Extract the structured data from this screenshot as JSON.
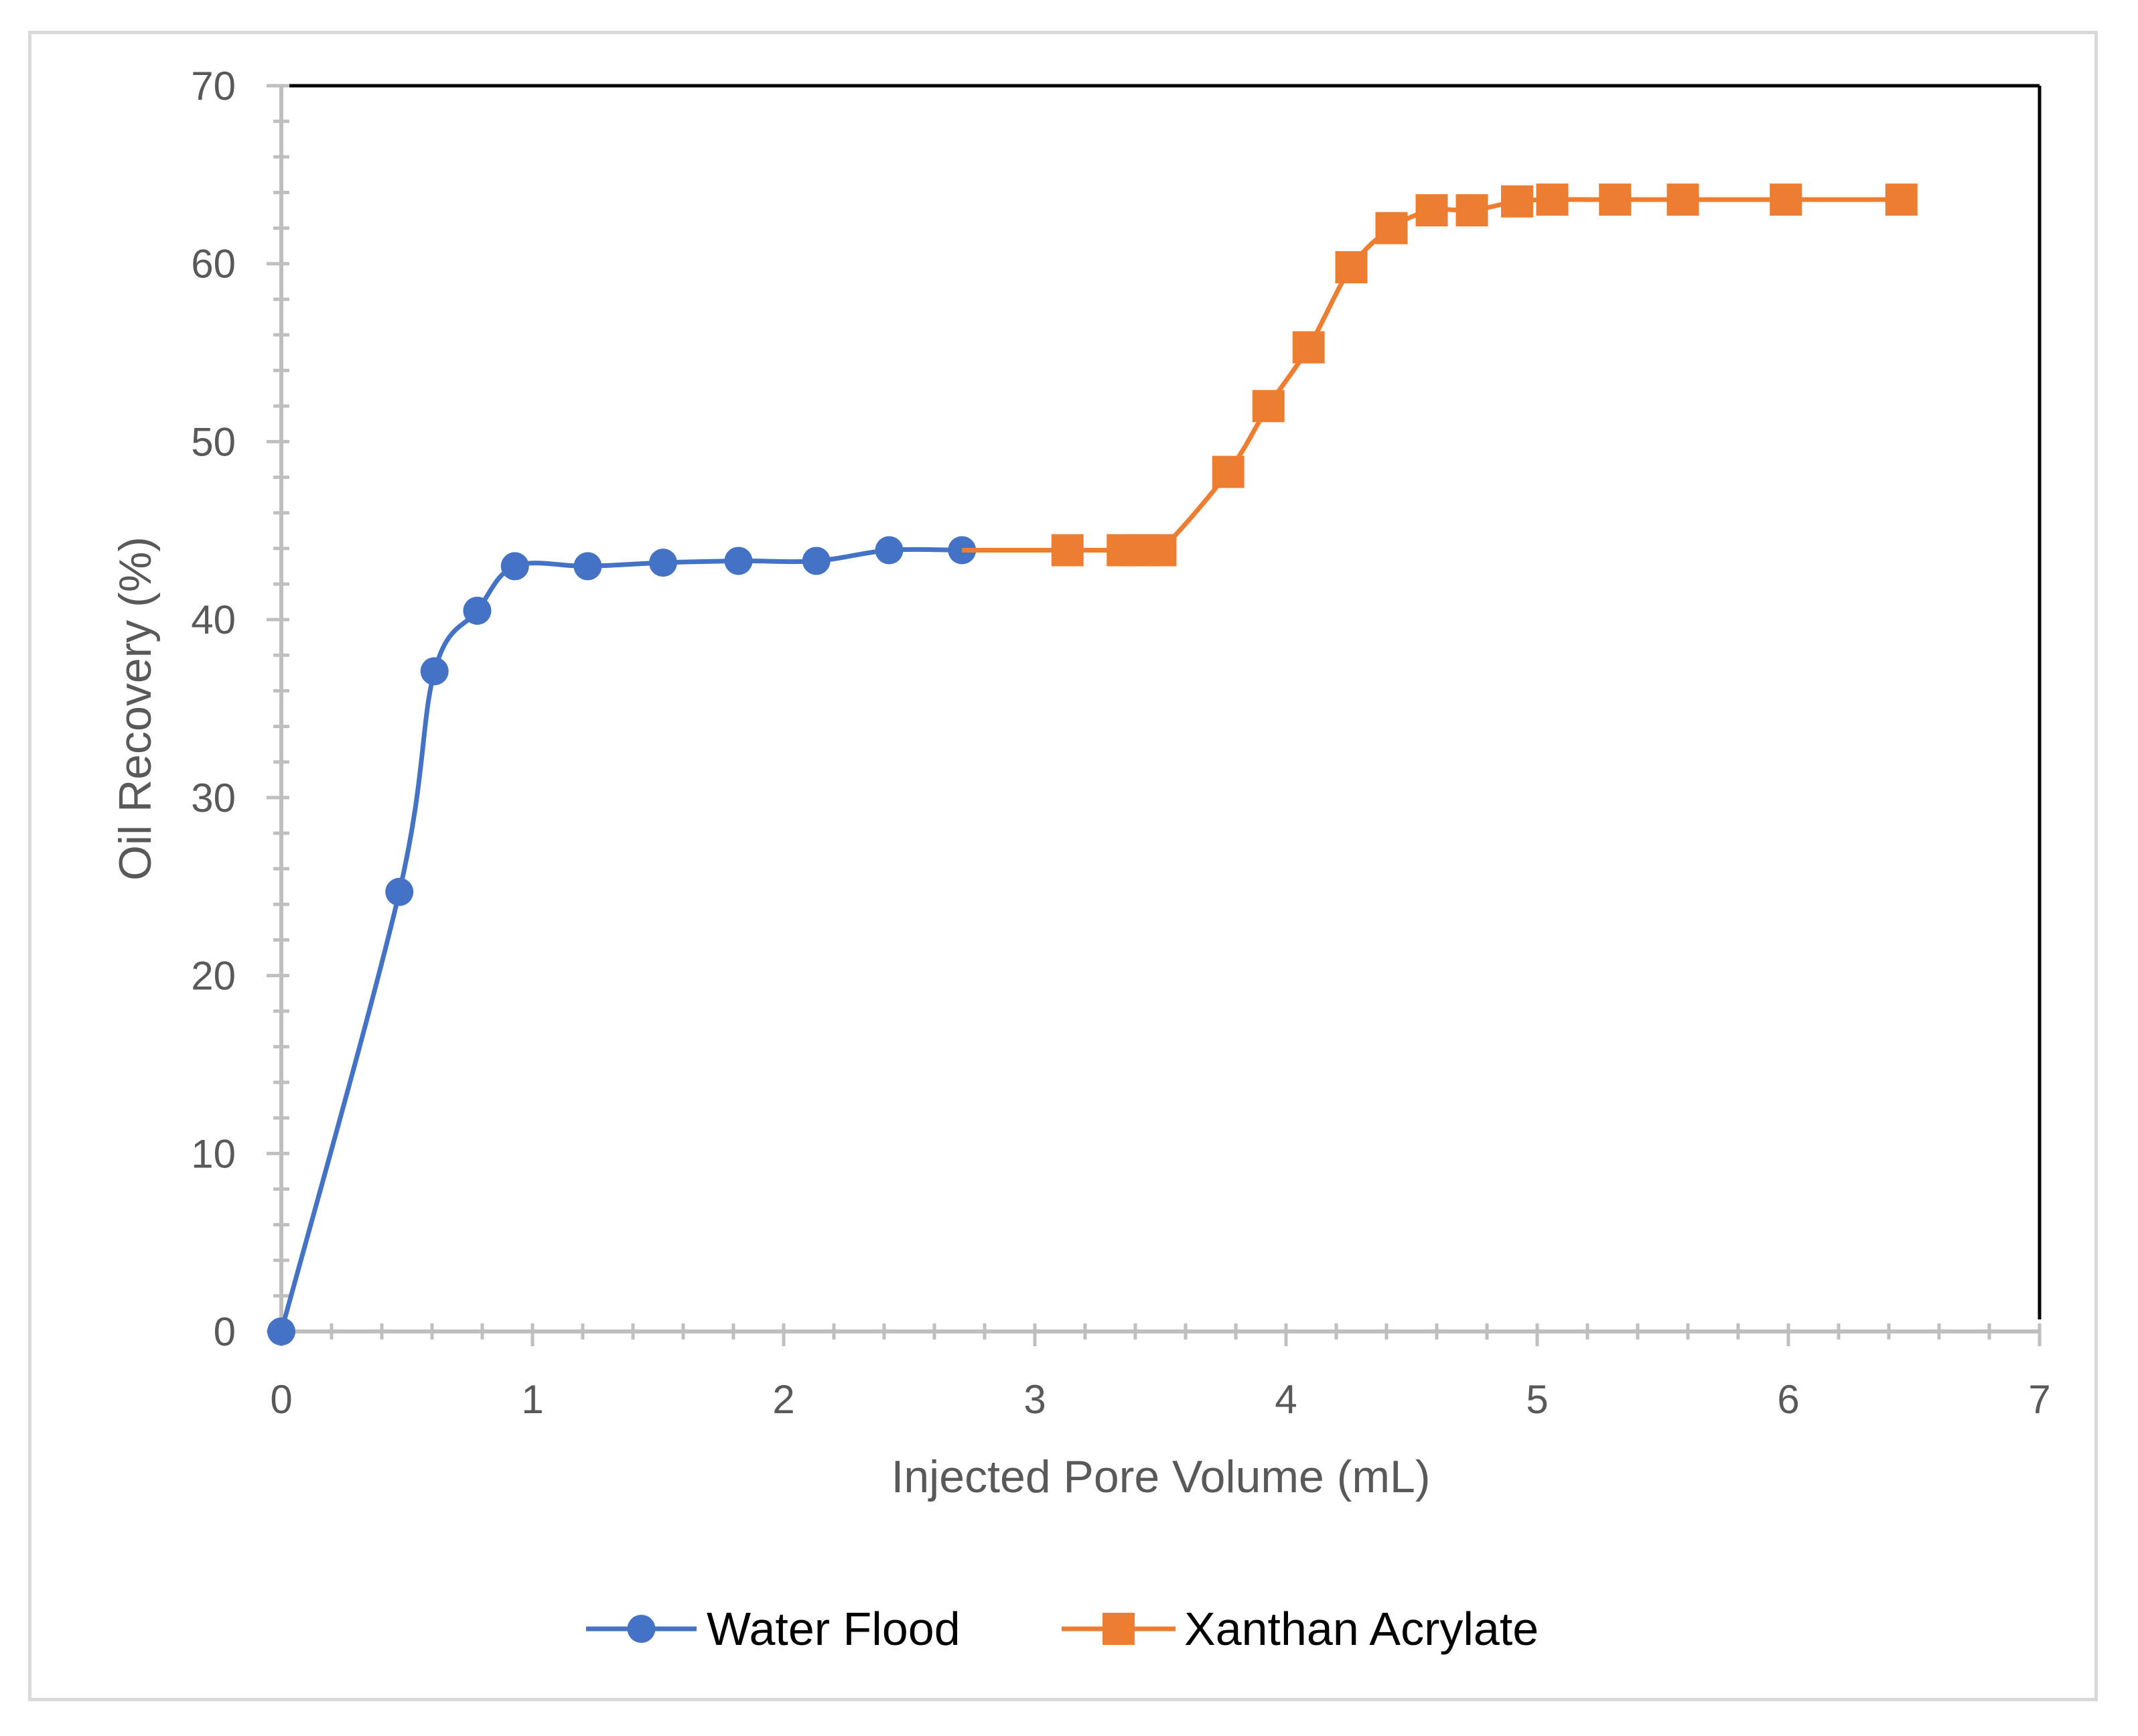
{
  "chart_data": {
    "type": "line",
    "title": "",
    "xlabel": "Injected Pore Volume (mL)",
    "ylabel": "Oil Recovery (%)",
    "xlim": [
      0,
      7
    ],
    "ylim": [
      0,
      70
    ],
    "xticks": [
      "0",
      "1",
      "2",
      "3",
      "4",
      "5",
      "6",
      "7"
    ],
    "yticks": [
      "0",
      "10",
      "20",
      "30",
      "40",
      "50",
      "60",
      "70"
    ],
    "grid": false,
    "legend_position": "bottom",
    "series": [
      {
        "name": "Water Flood",
        "color": "#4472c4",
        "marker": "circle",
        "x": [
          0,
          0.47,
          0.61,
          0.78,
          0.93,
          1.22,
          1.52,
          1.82,
          2.13,
          2.42,
          2.71
        ],
        "y": [
          0,
          24.7,
          37.1,
          40.5,
          43.0,
          43.0,
          43.2,
          43.3,
          43.3,
          43.9,
          43.9
        ]
      },
      {
        "name": "Xanthan Acrylate",
        "color": "#ed7d31",
        "marker": "square",
        "x": [
          3.13,
          3.35,
          3.42,
          3.5,
          3.77,
          3.93,
          4.09,
          4.26,
          4.42,
          4.58,
          4.74,
          4.92,
          5.06,
          5.31,
          5.58,
          5.99,
          6.45
        ],
        "y": [
          43.9,
          43.9,
          43.9,
          43.9,
          48.3,
          52.0,
          55.3,
          59.8,
          62.0,
          63.0,
          63.0,
          63.5,
          63.6,
          63.6,
          63.6,
          63.6,
          63.6
        ]
      }
    ]
  }
}
